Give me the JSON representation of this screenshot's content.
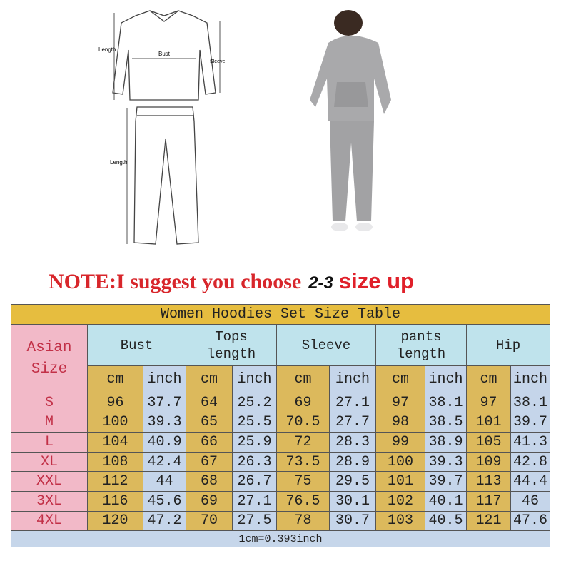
{
  "diagram": {
    "top_length_label": "Length",
    "bust_label": "Bust",
    "sleeve_label": "Sleeve",
    "pants_length_label": "Length"
  },
  "note": {
    "text": "NOTE:I suggest you choose",
    "range": "2-3",
    "suffix": "size up"
  },
  "colors": {
    "title": "#e6bd3f",
    "header": "#bfe3ec",
    "size_col": "#f2b9c8",
    "cm_col": "#dcb95c",
    "inch_col": "#c5d5ea",
    "note_red": "#d8262b"
  },
  "table": {
    "title": "Women Hoodies Set Size Table",
    "size_header": [
      "Asian",
      "Size"
    ],
    "groups": [
      {
        "label": [
          "Bust"
        ]
      },
      {
        "label": [
          "Tops",
          "length"
        ]
      },
      {
        "label": [
          "Sleeve"
        ]
      },
      {
        "label": [
          "pants",
          "length"
        ]
      },
      {
        "label": [
          "Hip"
        ]
      }
    ],
    "unit_cm": "cm",
    "unit_inch": "inch",
    "rows": [
      [
        "S",
        "96",
        "37.7",
        "64",
        "25.2",
        "69",
        "27.1",
        "97",
        "38.1",
        "97",
        "38.1"
      ],
      [
        "M",
        "100",
        "39.3",
        "65",
        "25.5",
        "70.5",
        "27.7",
        "98",
        "38.5",
        "101",
        "39.7"
      ],
      [
        "L",
        "104",
        "40.9",
        "66",
        "25.9",
        "72",
        "28.3",
        "99",
        "38.9",
        "105",
        "41.3"
      ],
      [
        "XL",
        "108",
        "42.4",
        "67",
        "26.3",
        "73.5",
        "28.9",
        "100",
        "39.3",
        "109",
        "42.8"
      ],
      [
        "XXL",
        "112",
        "44",
        "68",
        "26.7",
        "75",
        "29.5",
        "101",
        "39.7",
        "113",
        "44.4"
      ],
      [
        "3XL",
        "116",
        "45.6",
        "69",
        "27.1",
        "76.5",
        "30.1",
        "102",
        "40.1",
        "117",
        "46"
      ],
      [
        "4XL",
        "120",
        "47.2",
        "70",
        "27.5",
        "78",
        "30.7",
        "103",
        "40.5",
        "121",
        "47.6"
      ]
    ],
    "footer": "1cm=0.393inch"
  }
}
